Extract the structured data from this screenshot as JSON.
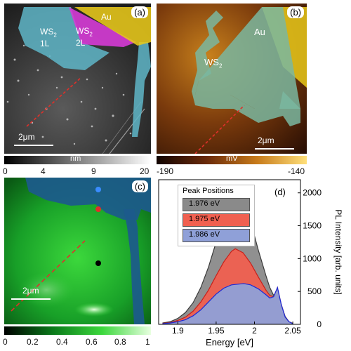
{
  "panels": {
    "a": {
      "tag": "(a)",
      "labels": {
        "ws2_1l_line1": "WS",
        "ws2_1l_sub": "2",
        "ws2_1l_line2": "1L",
        "ws2_2l_line1": "WS",
        "ws2_2l_sub": "2",
        "ws2_2l_line2": "2L",
        "au": "Au"
      },
      "scalebar": "2μm",
      "colorbar": {
        "unit": "nm",
        "ticks": [
          "0",
          "4",
          "9",
          "20"
        ]
      }
    },
    "b": {
      "tag": "(b)",
      "labels": {
        "ws2": "WS",
        "ws2_sub": "2",
        "au": "Au"
      },
      "scalebar": "2μm",
      "colorbar": {
        "unit": "mV",
        "ticks": [
          "-190",
          "-140"
        ]
      }
    },
    "c": {
      "tag": "(c)",
      "scalebar": "2μm",
      "colorbar": {
        "ticks": [
          "0",
          "0.2",
          "0.4",
          "0.6",
          "0.8",
          "1"
        ]
      }
    },
    "d": {
      "tag": "(d)",
      "legend_title": "Peak Positions",
      "legend": [
        "1.976 eV",
        "1.975 eV",
        "1.986 eV"
      ]
    }
  },
  "colors": {
    "ws2_overlay": "#5fb6c8",
    "ws2_2l_overlay": "#d63bd6",
    "au_overlay": "#e8c81a",
    "line_cut": "#e0302a",
    "series_gray": "#8a8a8a",
    "series_red": "#f06050",
    "series_blue": "#8fa0d8"
  },
  "chart_data": {
    "type": "area",
    "xlabel": "Energy [eV]",
    "ylabel": "PL Intensity [arb. units]",
    "xlim": [
      1.875,
      2.06
    ],
    "ylim": [
      0,
      2200
    ],
    "xticks": [
      1.9,
      1.95,
      2.0,
      2.05
    ],
    "xtick_labels": [
      "1.9",
      "1.95",
      "2",
      "2.05"
    ],
    "yticks": [
      0,
      500,
      1000,
      1500,
      2000
    ],
    "ytick_labels": [
      "0",
      "500",
      "1000",
      "1500",
      "2000"
    ],
    "y_axis_side": "right",
    "legend_title": "Peak Positions",
    "series": [
      {
        "name": "1.976 eV",
        "color": "#8a8a8a",
        "x": [
          1.88,
          1.89,
          1.9,
          1.91,
          1.92,
          1.93,
          1.94,
          1.95,
          1.96,
          1.97,
          1.976,
          1.985,
          1.995,
          2.005,
          2.015,
          2.02,
          2.025,
          2.03,
          2.035,
          2.04,
          2.045,
          2.05
        ],
        "y": [
          20,
          40,
          90,
          180,
          330,
          560,
          870,
          1250,
          1620,
          1880,
          1960,
          1870,
          1560,
          1130,
          740,
          560,
          440,
          520,
          300,
          120,
          40,
          15
        ]
      },
      {
        "name": "1.975 eV",
        "color": "#f06050",
        "x": [
          1.88,
          1.89,
          1.9,
          1.91,
          1.92,
          1.93,
          1.94,
          1.95,
          1.96,
          1.97,
          1.975,
          1.985,
          1.995,
          2.005,
          2.015,
          2.02,
          2.025,
          2.03,
          2.035,
          2.04,
          2.045,
          2.05
        ],
        "y": [
          15,
          25,
          60,
          110,
          200,
          340,
          520,
          740,
          950,
          1110,
          1150,
          1090,
          930,
          720,
          520,
          440,
          420,
          560,
          300,
          110,
          40,
          12
        ]
      },
      {
        "name": "1.986 eV",
        "color": "#8fa0d8",
        "x": [
          1.88,
          1.89,
          1.9,
          1.91,
          1.92,
          1.93,
          1.94,
          1.95,
          1.96,
          1.97,
          1.986,
          1.995,
          2.005,
          2.015,
          2.02,
          2.025,
          2.03,
          2.035,
          2.04,
          2.045,
          2.05
        ],
        "y": [
          10,
          20,
          40,
          70,
          130,
          220,
          340,
          460,
          550,
          600,
          620,
          600,
          540,
          450,
          400,
          420,
          560,
          300,
          110,
          40,
          10
        ]
      }
    ]
  }
}
